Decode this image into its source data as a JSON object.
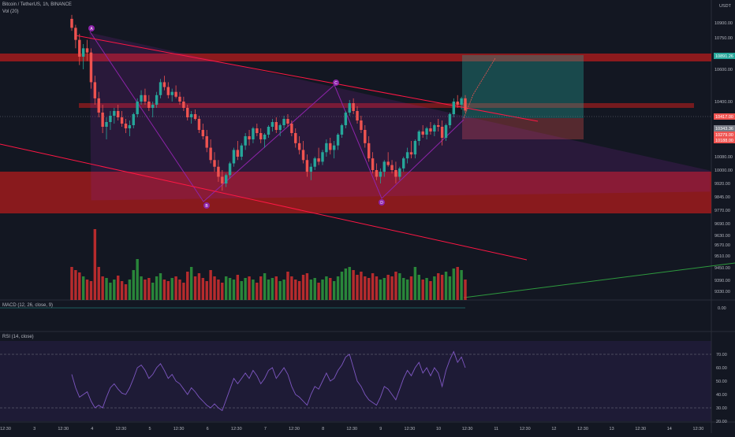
{
  "header": {
    "symbol_line": "Bitcoin / TetherUS, 1h, BINANCE",
    "volume_label": "Vol (20)",
    "macd_label": "MACD (12, 26, close, 9)",
    "rsi_label": "RSI (14, close)",
    "currency": "USDT"
  },
  "colors": {
    "background": "#131722",
    "bull": "#26a69a",
    "bear": "#ef5350",
    "volume_up": "#2e9a3e",
    "volume_down": "#d32f2f",
    "pattern": "#8e24aa",
    "zone": "#b71c1c",
    "trendline": "#ff1744",
    "rsi": "#7e57c2"
  },
  "pattern_labels": [
    "A",
    "B",
    "C",
    "D"
  ],
  "price_tags": [
    "10891.26",
    "10417.00",
    "10343.36",
    "10279.00",
    "10188.00"
  ],
  "chart_data": [
    {
      "type": "candlestick",
      "title": "Bitcoin / TetherUS, 1h, BINANCE",
      "ylabel": "USDT",
      "y_ticks": [
        10900.0,
        10750.0,
        10600.0,
        10400.0,
        10150.0,
        10080.0,
        10000.0,
        9920.0,
        9845.0,
        9770.0,
        9690.0,
        9630.0,
        9570.0,
        9510.0,
        9450.0,
        9390.0,
        9330.0
      ],
      "y_tick_labels": [
        "10900.00",
        "10750.00",
        "10600.00",
        "10400.00",
        "10150.00",
        "10080.00",
        "10000.00",
        "9920.00",
        "9845.00",
        "9770.00",
        "9690.00",
        "9630.00",
        "9570.00",
        "9510.00",
        "9450.00",
        "9390.00",
        "9330.00"
      ],
      "x_tick_labels": [
        "12:30",
        "3",
        "12:30",
        "4",
        "12:30",
        "5",
        "12:30",
        "6",
        "12:30",
        "7",
        "12:30",
        "8",
        "12:30",
        "9",
        "12:30",
        "10",
        "12:30",
        "11",
        "12:30",
        "12",
        "12:30",
        "13",
        "12:30",
        "14",
        "12:30"
      ],
      "ohlc_estimated": true,
      "ohlc": [
        [
          10940,
          10980,
          10820,
          10850
        ],
        [
          10850,
          10880,
          10700,
          10740
        ],
        [
          10740,
          10790,
          10620,
          10660
        ],
        [
          10660,
          10720,
          10600,
          10700
        ],
        [
          10700,
          10740,
          10640,
          10680
        ],
        [
          10680,
          10700,
          10480,
          10520
        ],
        [
          10520,
          10560,
          10380,
          10420
        ],
        [
          10420,
          10460,
          10300,
          10330
        ],
        [
          10330,
          10380,
          10200,
          10240
        ],
        [
          10240,
          10300,
          10160,
          10270
        ],
        [
          10270,
          10340,
          10220,
          10310
        ],
        [
          10310,
          10360,
          10260,
          10340
        ],
        [
          10340,
          10380,
          10280,
          10300
        ],
        [
          10300,
          10340,
          10240,
          10260
        ],
        [
          10260,
          10290,
          10200,
          10230
        ],
        [
          10230,
          10280,
          10180,
          10250
        ],
        [
          10250,
          10330,
          10230,
          10320
        ],
        [
          10320,
          10420,
          10300,
          10400
        ],
        [
          10400,
          10470,
          10380,
          10440
        ],
        [
          10440,
          10480,
          10380,
          10400
        ],
        [
          10400,
          10440,
          10340,
          10360
        ],
        [
          10360,
          10400,
          10300,
          10380
        ],
        [
          10380,
          10460,
          10360,
          10440
        ],
        [
          10440,
          10540,
          10420,
          10520
        ],
        [
          10520,
          10560,
          10470,
          10490
        ],
        [
          10490,
          10520,
          10420,
          10440
        ],
        [
          10440,
          10480,
          10400,
          10460
        ],
        [
          10460,
          10500,
          10420,
          10430
        ],
        [
          10430,
          10460,
          10380,
          10400
        ],
        [
          10400,
          10430,
          10340,
          10360
        ],
        [
          10360,
          10380,
          10280,
          10300
        ],
        [
          10300,
          10340,
          10260,
          10320
        ],
        [
          10320,
          10350,
          10280,
          10290
        ],
        [
          10290,
          10310,
          10200,
          10220
        ],
        [
          10220,
          10260,
          10160,
          10180
        ],
        [
          10180,
          10220,
          10100,
          10120
        ],
        [
          10120,
          10160,
          10040,
          10060
        ],
        [
          10060,
          10100,
          9990,
          10020
        ],
        [
          10020,
          10060,
          9930,
          9960
        ],
        [
          9960,
          10000,
          9880,
          9920
        ],
        [
          9920,
          9980,
          9900,
          9970
        ],
        [
          9970,
          10050,
          9950,
          10040
        ],
        [
          10040,
          10120,
          10020,
          10110
        ],
        [
          10110,
          10150,
          10060,
          10080
        ],
        [
          10080,
          10140,
          10060,
          10130
        ],
        [
          10130,
          10200,
          10110,
          10180
        ],
        [
          10180,
          10220,
          10130,
          10160
        ],
        [
          10160,
          10240,
          10140,
          10230
        ],
        [
          10230,
          10260,
          10180,
          10200
        ],
        [
          10200,
          10230,
          10140,
          10160
        ],
        [
          10160,
          10200,
          10120,
          10190
        ],
        [
          10190,
          10250,
          10170,
          10240
        ],
        [
          10240,
          10290,
          10210,
          10270
        ],
        [
          10270,
          10300,
          10200,
          10220
        ],
        [
          10220,
          10260,
          10180,
          10250
        ],
        [
          10250,
          10310,
          10230,
          10290
        ],
        [
          10290,
          10320,
          10240,
          10260
        ],
        [
          10260,
          10280,
          10180,
          10200
        ],
        [
          10200,
          10230,
          10120,
          10140
        ],
        [
          10140,
          10180,
          10090,
          10110
        ],
        [
          10110,
          10150,
          10040,
          10060
        ],
        [
          10060,
          10090,
          9960,
          9990
        ],
        [
          9990,
          10040,
          9940,
          10020
        ],
        [
          10020,
          10080,
          10000,
          10070
        ],
        [
          10070,
          10120,
          10030,
          10050
        ],
        [
          10050,
          10110,
          10030,
          10100
        ],
        [
          10100,
          10160,
          10080,
          10140
        ],
        [
          10140,
          10170,
          10090,
          10110
        ],
        [
          10110,
          10150,
          10070,
          10130
        ],
        [
          10130,
          10200,
          10110,
          10190
        ],
        [
          10190,
          10260,
          10170,
          10250
        ],
        [
          10250,
          10340,
          10230,
          10330
        ],
        [
          10330,
          10410,
          10310,
          10390
        ],
        [
          10390,
          10420,
          10320,
          10340
        ],
        [
          10340,
          10370,
          10260,
          10280
        ],
        [
          10280,
          10310,
          10200,
          10220
        ],
        [
          10220,
          10250,
          10120,
          10140
        ],
        [
          10140,
          10180,
          10050,
          10070
        ],
        [
          10070,
          10100,
          9980,
          10000
        ],
        [
          10000,
          10040,
          9940,
          9960
        ],
        [
          9960,
          10010,
          9920,
          9990
        ],
        [
          9990,
          10060,
          9960,
          10050
        ],
        [
          10050,
          10100,
          10020,
          10030
        ],
        [
          10030,
          10060,
          9980,
          10000
        ],
        [
          10000,
          10050,
          9920,
          9960
        ],
        [
          9960,
          10020,
          9940,
          10010
        ],
        [
          10010,
          10080,
          9990,
          10070
        ],
        [
          10070,
          10120,
          10040,
          10100
        ],
        [
          10100,
          10150,
          10070,
          10090
        ],
        [
          10090,
          10160,
          10070,
          10150
        ],
        [
          10150,
          10220,
          10130,
          10210
        ],
        [
          10210,
          10250,
          10170,
          10190
        ],
        [
          10190,
          10240,
          10160,
          10230
        ],
        [
          10230,
          10270,
          10190,
          10210
        ],
        [
          10210,
          10260,
          10180,
          10250
        ],
        [
          10250,
          10290,
          10210,
          10240
        ],
        [
          10240,
          10280,
          10130,
          10170
        ],
        [
          10170,
          10260,
          10150,
          10250
        ],
        [
          10250,
          10330,
          10230,
          10320
        ],
        [
          10320,
          10420,
          10300,
          10400
        ],
        [
          10400,
          10440,
          10360,
          10380
        ],
        [
          10380,
          10430,
          10350,
          10420
        ],
        [
          10420,
          10440,
          10330,
          10343
        ]
      ]
    },
    {
      "type": "bar",
      "title": "Vol (20)",
      "values_estimated": true,
      "values": [
        420,
        380,
        350,
        300,
        260,
        240,
        900,
        420,
        300,
        280,
        220,
        260,
        310,
        240,
        200,
        260,
        380,
        520,
        300,
        260,
        280,
        220,
        300,
        340,
        260,
        240,
        280,
        300,
        260,
        220,
        360,
        420,
        300,
        340,
        280,
        240,
        380,
        300,
        260,
        220,
        300,
        280,
        260,
        320,
        240,
        280,
        300,
        260,
        220,
        300,
        340,
        260,
        280,
        300,
        240,
        260,
        360,
        300,
        260,
        240,
        320,
        340,
        260,
        280,
        220,
        260,
        300,
        280,
        240,
        300,
        360,
        400,
        420,
        380,
        320,
        360,
        300,
        280,
        340,
        300,
        260,
        280,
        320,
        300,
        360,
        340,
        280,
        260,
        300,
        420,
        320,
        260,
        280,
        240,
        300,
        340,
        320,
        360,
        300,
        400,
        420,
        380,
        260
      ],
      "up": [
        false,
        false,
        false,
        true,
        false,
        false,
        false,
        false,
        false,
        true,
        true,
        true,
        false,
        false,
        false,
        true,
        true,
        true,
        true,
        false,
        false,
        true,
        true,
        true,
        false,
        false,
        true,
        false,
        false,
        false,
        false,
        true,
        false,
        false,
        false,
        false,
        false,
        false,
        false,
        false,
        true,
        true,
        true,
        false,
        true,
        true,
        false,
        true,
        false,
        false,
        true,
        true,
        true,
        false,
        true,
        true,
        false,
        false,
        false,
        false,
        false,
        false,
        true,
        true,
        false,
        true,
        true,
        false,
        true,
        true,
        true,
        true,
        true,
        false,
        false,
        false,
        false,
        false,
        false,
        false,
        true,
        true,
        false,
        false,
        false,
        true,
        true,
        true,
        false,
        true,
        true,
        false,
        true,
        false,
        true,
        false,
        false,
        true,
        true,
        true,
        false,
        true,
        false
      ]
    },
    {
      "type": "line",
      "title": "MACD (12, 26, close, 9)",
      "y_tick_labels": [
        "0.00"
      ]
    },
    {
      "type": "line",
      "title": "RSI (14, close)",
      "ylim": [
        20,
        80
      ],
      "y_ticks": [
        70,
        60,
        50,
        40,
        30,
        20
      ],
      "y_tick_labels": [
        "70.00",
        "60.00",
        "50.00",
        "40.00",
        "30.00",
        "20.00"
      ],
      "values_estimated": true,
      "values": [
        55,
        45,
        38,
        40,
        42,
        35,
        30,
        32,
        30,
        38,
        45,
        48,
        44,
        41,
        40,
        45,
        52,
        60,
        62,
        58,
        52,
        55,
        60,
        63,
        58,
        52,
        55,
        50,
        48,
        44,
        40,
        45,
        42,
        38,
        35,
        32,
        30,
        33,
        30,
        28,
        36,
        44,
        52,
        48,
        52,
        56,
        52,
        58,
        54,
        48,
        52,
        58,
        60,
        52,
        56,
        60,
        55,
        46,
        40,
        38,
        35,
        32,
        40,
        46,
        44,
        50,
        56,
        50,
        52,
        58,
        62,
        68,
        70,
        60,
        50,
        46,
        40,
        36,
        34,
        32,
        38,
        46,
        44,
        40,
        36,
        44,
        52,
        58,
        54,
        60,
        64,
        56,
        60,
        54,
        60,
        56,
        46,
        58,
        66,
        72,
        64,
        68,
        60
      ]
    }
  ]
}
